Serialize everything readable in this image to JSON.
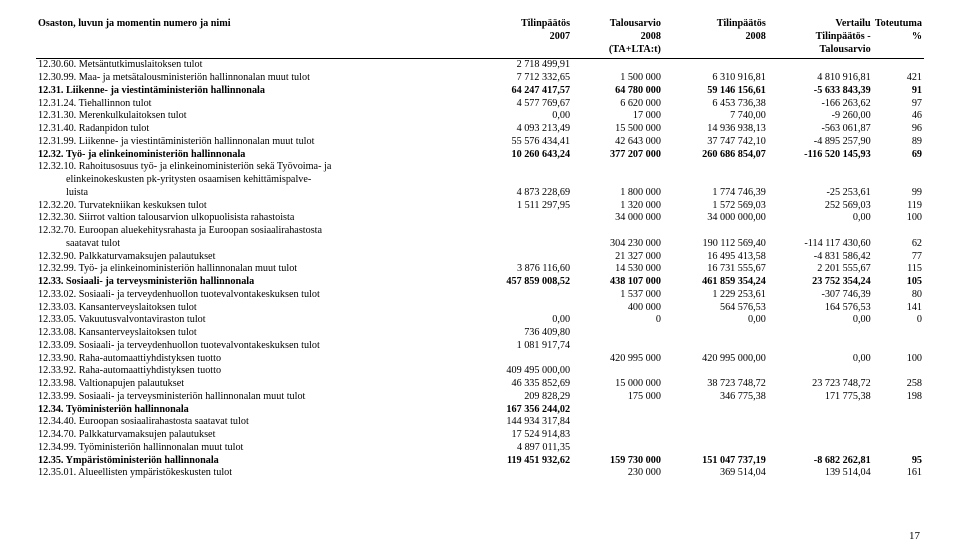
{
  "header": {
    "left": "Osaston, luvun ja momentin numero ja nimi",
    "cols": [
      [
        "Tilinpäätös",
        "2007",
        ""
      ],
      [
        "Talousarvio",
        "2008",
        "(TA+LTA:t)"
      ],
      [
        "Tilinpäätös",
        "2008",
        ""
      ],
      [
        "Vertailu",
        "Tilinpäätös -",
        "Talousarvio"
      ],
      [
        "Toteutuma",
        "%",
        ""
      ]
    ]
  },
  "page_number": "17",
  "rows": [
    {
      "l": "12.30.60. Metsäntutkimuslaitoksen tulot",
      "c": [
        "2 718 499,91",
        "",
        "",
        "",
        ""
      ]
    },
    {
      "l": "12.30.99. Maa- ja metsätalousministeriön hallinnonalan muut tulot",
      "c": [
        "7 712 332,65",
        "1 500 000",
        "6 310 916,81",
        "4 810 916,81",
        "421"
      ]
    },
    {
      "l": "12.31.   Liikenne- ja viestintäministeriön hallinnonala",
      "c": [
        "64 247 417,57",
        "64 780 000",
        "59 146 156,61",
        "-5 633 843,39",
        "91"
      ],
      "bold": true
    },
    {
      "l": "12.31.24. Tiehallinnon tulot",
      "c": [
        "4 577 769,67",
        "6 620 000",
        "6 453 736,38",
        "-166 263,62",
        "97"
      ]
    },
    {
      "l": "12.31.30. Merenkulkulaitoksen tulot",
      "c": [
        "0,00",
        "17 000",
        "7 740,00",
        "-9 260,00",
        "46"
      ]
    },
    {
      "l": "12.31.40. Radanpidon tulot",
      "c": [
        "4 093 213,49",
        "15 500 000",
        "14 936 938,13",
        "-563 061,87",
        "96"
      ]
    },
    {
      "l": "12.31.99. Liikenne- ja viestintäministeriön hallinnonalan muut tulot",
      "c": [
        "55 576 434,41",
        "42 643 000",
        "37 747 742,10",
        "-4 895 257,90",
        "89"
      ]
    },
    {
      "l": "12.32.   Työ- ja elinkeinoministeriön hallinnonala",
      "c": [
        "10 260 643,24",
        "377 207 000",
        "260 686 854,07",
        "-116 520 145,93",
        "69"
      ],
      "bold": true
    },
    {
      "l": "12.32.10. Rahoitusosuus työ- ja elinkeinoministeriön sekä Työvoima- ja",
      "c": [
        "",
        "",
        "",
        "",
        ""
      ]
    },
    {
      "l": "elinkeinokeskusten pk-yritysten osaamisen kehittämispalve-",
      "c": [
        "",
        "",
        "",
        "",
        ""
      ],
      "indent": true
    },
    {
      "l": "luista",
      "c": [
        "4 873 228,69",
        "1 800 000",
        "1 774 746,39",
        "-25 253,61",
        "99"
      ],
      "indent": true
    },
    {
      "l": "12.32.20. Turvatekniikan keskuksen tulot",
      "c": [
        "1 511 297,95",
        "1 320 000",
        "1 572 569,03",
        "252 569,03",
        "119"
      ]
    },
    {
      "l": "12.32.30. Siirrot valtion talousarvion ulkopuolisista rahastoista",
      "c": [
        "",
        "34 000 000",
        "34 000 000,00",
        "0,00",
        "100"
      ]
    },
    {
      "l": "12.32.70. Euroopan aluekehitysrahasta ja Euroopan sosiaalirahastosta",
      "c": [
        "",
        "",
        "",
        "",
        ""
      ]
    },
    {
      "l": "saatavat tulot",
      "c": [
        "",
        "304 230 000",
        "190 112 569,40",
        "-114 117 430,60",
        "62"
      ],
      "indent": true
    },
    {
      "l": "12.32.90. Palkkaturvamaksujen palautukset",
      "c": [
        "",
        "21 327 000",
        "16 495 413,58",
        "-4 831 586,42",
        "77"
      ]
    },
    {
      "l": "12.32.99. Työ- ja elinkeinoministeriön hallinnonalan muut tulot",
      "c": [
        "3 876 116,60",
        "14 530 000",
        "16 731 555,67",
        "2 201 555,67",
        "115"
      ]
    },
    {
      "l": "12.33.   Sosiaali- ja terveysministeriön hallinnonala",
      "c": [
        "457 859 008,52",
        "438 107 000",
        "461 859 354,24",
        "23 752 354,24",
        "105"
      ],
      "bold": true
    },
    {
      "l": "12.33.02. Sosiaali- ja terveydenhuollon tuotevalvontakeskuksen tulot",
      "c": [
        "",
        "1 537 000",
        "1 229 253,61",
        "-307 746,39",
        "80"
      ]
    },
    {
      "l": "12.33.03. Kansanterveyslaitoksen tulot",
      "c": [
        "",
        "400 000",
        "564 576,53",
        "164 576,53",
        "141"
      ]
    },
    {
      "l": "12.33.05. Vakuutusvalvontaviraston tulot",
      "c": [
        "0,00",
        "0",
        "0,00",
        "0,00",
        "0"
      ]
    },
    {
      "l": "12.33.08. Kansanterveyslaitoksen tulot",
      "c": [
        "736 409,80",
        "",
        "",
        "",
        ""
      ]
    },
    {
      "l": "12.33.09. Sosiaali- ja terveydenhuollon tuotevalvontakeskuksen tulot",
      "c": [
        "1 081 917,74",
        "",
        "",
        "",
        ""
      ]
    },
    {
      "l": "12.33.90. Raha-automaattiyhdistyksen tuotto",
      "c": [
        "",
        "420 995 000",
        "420 995 000,00",
        "0,00",
        "100"
      ]
    },
    {
      "l": "12.33.92. Raha-automaattiyhdistyksen tuotto",
      "c": [
        "409 495 000,00",
        "",
        "",
        "",
        ""
      ]
    },
    {
      "l": "12.33.98. Valtionapujen palautukset",
      "c": [
        "46 335 852,69",
        "15 000 000",
        "38 723 748,72",
        "23 723 748,72",
        "258"
      ]
    },
    {
      "l": "12.33.99. Sosiaali- ja terveysministeriön hallinnonalan muut tulot",
      "c": [
        "209 828,29",
        "175 000",
        "346 775,38",
        "171 775,38",
        "198"
      ]
    },
    {
      "l": "12.34.   Työministeriön hallinnonala",
      "c": [
        "167 356 244,02",
        "",
        "",
        "",
        ""
      ],
      "bold": true
    },
    {
      "l": "12.34.40. Euroopan sosiaalirahastosta saatavat tulot",
      "c": [
        "144 934 317,84",
        "",
        "",
        "",
        ""
      ]
    },
    {
      "l": "12.34.70. Palkkaturvamaksujen palautukset",
      "c": [
        "17 524 914,83",
        "",
        "",
        "",
        ""
      ]
    },
    {
      "l": "12.34.99. Työministeriön hallinnonalan muut tulot",
      "c": [
        "4 897 011,35",
        "",
        "",
        "",
        ""
      ]
    },
    {
      "l": "12.35.   Ympäristöministeriön hallinnonala",
      "c": [
        "119 451 932,62",
        "159 730 000",
        "151 047 737,19",
        "-8 682 262,81",
        "95"
      ],
      "bold": true
    },
    {
      "l": "12.35.01. Alueellisten ympäristökeskusten tulot",
      "c": [
        "",
        "230 000",
        "369 514,04",
        "139 514,04",
        "161"
      ]
    }
  ]
}
